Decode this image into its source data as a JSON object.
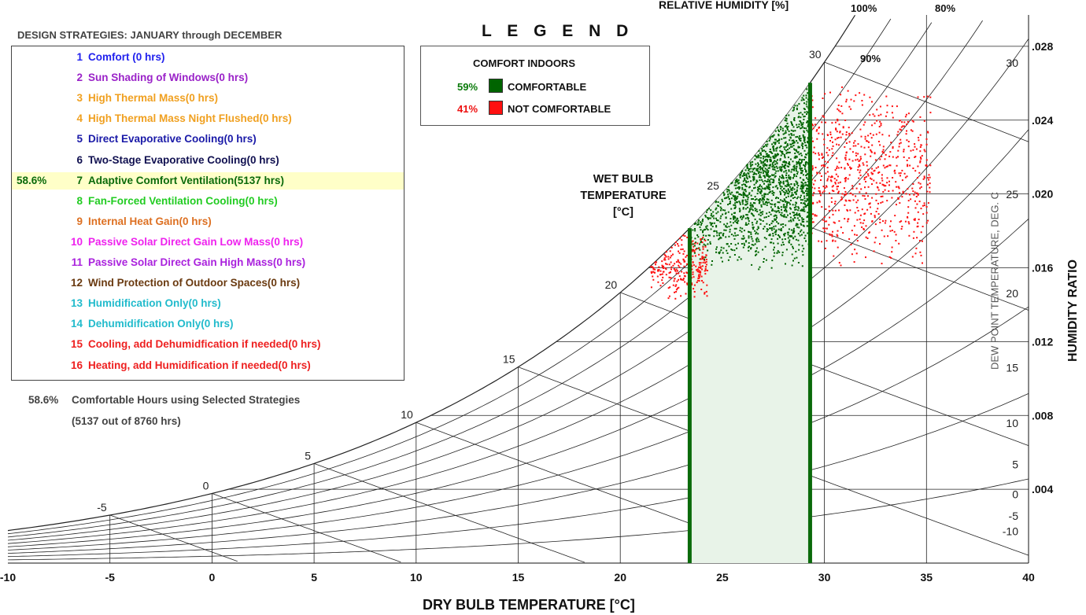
{
  "title": "DESIGN STRATEGIES:  JANUARY through DECEMBER",
  "strategies": [
    {
      "pct": "",
      "num": "1",
      "label": "Comfort (0 hrs)",
      "color": "#2222ee"
    },
    {
      "pct": "",
      "num": "2",
      "label": "Sun Shading of Windows(0 hrs)",
      "color": "#9a22c8"
    },
    {
      "pct": "",
      "num": "3",
      "label": "High Thermal Mass(0 hrs)",
      "color": "#f0a020"
    },
    {
      "pct": "",
      "num": "4",
      "label": "High Thermal Mass Night Flushed(0 hrs)",
      "color": "#f0a020"
    },
    {
      "pct": "",
      "num": "5",
      "label": "Direct Evaporative Cooling(0 hrs)",
      "color": "#1a1aa8"
    },
    {
      "pct": "",
      "num": "6",
      "label": "Two-Stage Evaporative Cooling(0 hrs)",
      "color": "#101050"
    },
    {
      "pct": "58.6%",
      "num": "7",
      "label": "Adaptive Comfort Ventilation(5137 hrs)",
      "color": "#0a6a0a",
      "highlight": true
    },
    {
      "pct": "",
      "num": "8",
      "label": "Fan-Forced Ventilation Cooling(0 hrs)",
      "color": "#22cc22"
    },
    {
      "pct": "",
      "num": "9",
      "label": "Internal Heat Gain(0 hrs)",
      "color": "#dd7022"
    },
    {
      "pct": "",
      "num": "10",
      "label": "Passive Solar Direct Gain Low Mass(0 hrs)",
      "color": "#ee22ee"
    },
    {
      "pct": "",
      "num": "11",
      "label": "Passive Solar Direct Gain High Mass(0 hrs)",
      "color": "#aa22dd"
    },
    {
      "pct": "",
      "num": "12",
      "label": "Wind Protection of Outdoor Spaces(0 hrs)",
      "color": "#6a3a10"
    },
    {
      "pct": "",
      "num": "13",
      "label": "Humidification Only(0 hrs)",
      "color": "#22bbcc"
    },
    {
      "pct": "",
      "num": "14",
      "label": "Dehumidification Only(0 hrs)",
      "color": "#22bbcc"
    },
    {
      "pct": "",
      "num": "15",
      "label": "Cooling, add Dehumidfication if needed(0 hrs)",
      "color": "#ee2020"
    },
    {
      "pct": "",
      "num": "16",
      "label": "Heating, add Humidification if needed(0 hrs)",
      "color": "#ee2020"
    }
  ],
  "summary": {
    "pct": "58.6%",
    "line1": "Comfortable Hours using Selected Strategies",
    "line2": "(5137 out of 8760 hrs)"
  },
  "legend": {
    "title": "L E G E N D",
    "heading": "COMFORT INDOORS",
    "items": [
      {
        "pct": "59%",
        "label": "COMFORTABLE",
        "color": "#006400"
      },
      {
        "pct": "41%",
        "label": "NOT COMFORTABLE",
        "color": "#ff1010"
      }
    ]
  },
  "wet_bulb_label": {
    "line1": "WET BULB",
    "line2": "TEMPERATURE",
    "line3": "[°C]"
  },
  "rh_title": "RELATIVE HUMIDITY [%]",
  "rh_top_labels": {
    "rh100": "100%",
    "rh80": "80%",
    "rh90": "90%"
  },
  "x_axis_title": "DRY BULB TEMPERATURE [°C]",
  "y_axis_title": "HUMIDITY RATIO",
  "dewpoint_title": "DEW POINT TEMPERATURE, DEG. C",
  "chart_data": {
    "type": "scatter",
    "xlabel": "DRY BULB TEMPERATURE [°C]",
    "ylabel": "HUMIDITY RATIO",
    "xlim": [
      -10,
      40
    ],
    "ylim": [
      0,
      0.03
    ],
    "x_ticks": [
      -10,
      -5,
      0,
      5,
      10,
      15,
      20,
      25,
      30,
      35,
      40
    ],
    "y_ticks": [
      ".004",
      ".008",
      ".012",
      ".016",
      ".020",
      ".024",
      ".028"
    ],
    "y_tick_values": [
      0.004,
      0.008,
      0.012,
      0.016,
      0.02,
      0.024,
      0.028
    ],
    "dew_point_ticks": [
      -10,
      -5,
      0,
      5,
      10,
      15,
      20,
      25,
      30
    ],
    "wet_bulb_ticks": [
      -5,
      0,
      5,
      10,
      15,
      20,
      25,
      30
    ],
    "rh_curves_percent": [
      10,
      20,
      30,
      40,
      50,
      60,
      70,
      80,
      90,
      100
    ],
    "comfort_zone": {
      "db_min": 23.4,
      "db_max": 29.3,
      "fill": "#e8f3e8",
      "line_color": "#0a6a0a"
    },
    "point_clouds": [
      {
        "name": "COMFORTABLE",
        "color": "#006400",
        "count": 1600,
        "db_range": [
          23.4,
          29.3
        ],
        "w_range": [
          0.0158,
          0.0268
        ],
        "rh_max": 1.0
      },
      {
        "name": "NOT COMFORTABLE",
        "color": "#ff1010",
        "count": 720,
        "db_range": [
          29.3,
          35.2
        ],
        "w_range": [
          0.0156,
          0.0262
        ],
        "rh_max": 1.0
      },
      {
        "name": "NOT COMFORTABLE",
        "color": "#ff1010",
        "count": 260,
        "db_range": [
          21.5,
          24.3
        ],
        "w_range": [
          0.0142,
          0.0183
        ],
        "rh_max": 1.0
      }
    ]
  }
}
